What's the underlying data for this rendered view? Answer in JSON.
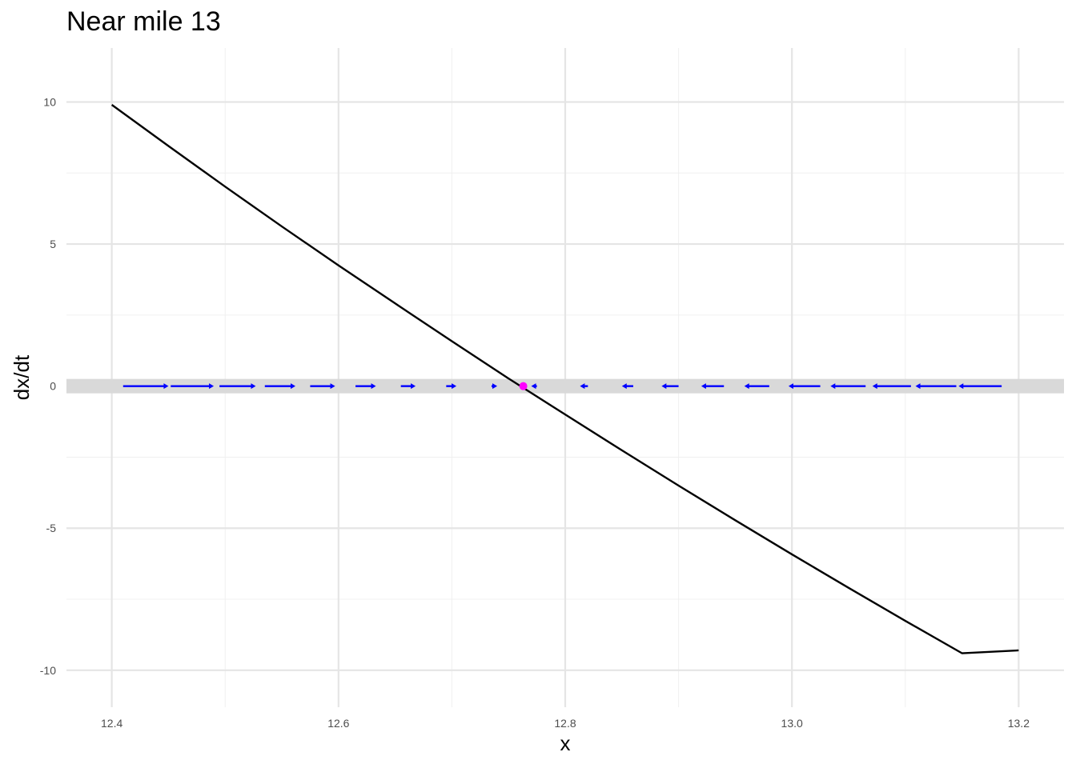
{
  "chart_data": {
    "type": "line",
    "title": "Near mile 13",
    "xlabel": "x",
    "ylabel": "dx/dt",
    "xlim": [
      12.36,
      13.24
    ],
    "ylim": [
      -11.3,
      11.9
    ],
    "x_ticks": [
      12.4,
      12.6,
      12.8,
      13.0,
      13.2
    ],
    "x_tick_labels": [
      "12.4",
      "12.6",
      "12.8",
      "13.0",
      "13.2"
    ],
    "y_ticks": [
      -10,
      -5,
      0,
      5,
      10
    ],
    "y_tick_labels": [
      "-10",
      "-5",
      "0",
      "5",
      "10"
    ],
    "grid": true,
    "series": [
      {
        "style": "line",
        "color": "#000000",
        "x": [
          12.4,
          12.45,
          12.5,
          12.55,
          12.6,
          12.65,
          12.7,
          12.75,
          12.8,
          12.85,
          12.9,
          12.95,
          13.0,
          13.05,
          13.1,
          13.15,
          13.2
        ],
        "y": [
          9.9,
          8.45,
          7.02,
          5.62,
          4.25,
          2.91,
          1.58,
          0.27,
          -1.0,
          -2.26,
          -3.5,
          -4.72,
          -5.92,
          -7.1,
          -8.26,
          -9.4,
          -9.3
        ]
      }
    ],
    "flow_arrows": {
      "color": "#0000ff",
      "y": 0,
      "segments": [
        {
          "x_start": 12.41,
          "x_end": 12.45,
          "direction": "right"
        },
        {
          "x_start": 12.452,
          "x_end": 12.49,
          "direction": "right"
        },
        {
          "x_start": 12.495,
          "x_end": 12.527,
          "direction": "right"
        },
        {
          "x_start": 12.535,
          "x_end": 12.562,
          "direction": "right"
        },
        {
          "x_start": 12.575,
          "x_end": 12.597,
          "direction": "right"
        },
        {
          "x_start": 12.615,
          "x_end": 12.633,
          "direction": "right"
        },
        {
          "x_start": 12.655,
          "x_end": 12.668,
          "direction": "right"
        },
        {
          "x_start": 12.695,
          "x_end": 12.704,
          "direction": "right"
        },
        {
          "x_start": 12.735,
          "x_end": 12.74,
          "direction": "right"
        },
        {
          "x_start": 12.775,
          "x_end": 12.77,
          "direction": "left"
        },
        {
          "x_start": 12.82,
          "x_end": 12.813,
          "direction": "left"
        },
        {
          "x_start": 12.86,
          "x_end": 12.85,
          "direction": "left"
        },
        {
          "x_start": 12.9,
          "x_end": 12.885,
          "direction": "left"
        },
        {
          "x_start": 12.94,
          "x_end": 12.92,
          "direction": "left"
        },
        {
          "x_start": 12.98,
          "x_end": 12.958,
          "direction": "left"
        },
        {
          "x_start": 13.025,
          "x_end": 12.997,
          "direction": "left"
        },
        {
          "x_start": 13.065,
          "x_end": 13.034,
          "direction": "left"
        },
        {
          "x_start": 13.105,
          "x_end": 13.071,
          "direction": "left"
        },
        {
          "x_start": 13.145,
          "x_end": 13.109,
          "direction": "left"
        },
        {
          "x_start": 13.185,
          "x_end": 13.147,
          "direction": "left"
        }
      ]
    },
    "equilibrium": {
      "x": 12.763,
      "y": 0,
      "color": "#ff00ff"
    },
    "zero_band": {
      "y": 0,
      "color": "#d9d9d9"
    }
  }
}
